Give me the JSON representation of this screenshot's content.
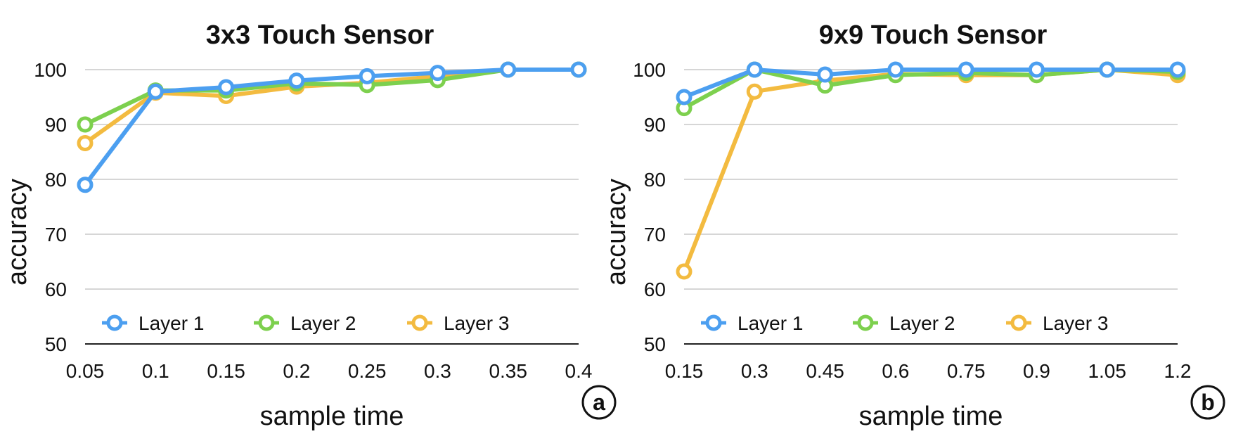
{
  "chart_data": [
    {
      "type": "line",
      "title": "3x3 Touch Sensor",
      "xlabel": "sample time",
      "ylabel": "accuracy",
      "x": [
        "0.05",
        "0.1",
        "0.15",
        "0.2",
        "0.25",
        "0.3",
        "0.35",
        "0.4"
      ],
      "ylim": [
        50,
        100
      ],
      "yticks": [
        "50",
        "60",
        "70",
        "80",
        "90",
        "100"
      ],
      "grid": true,
      "legend_position": "bottom-left",
      "panel_label": "a",
      "series": [
        {
          "name": "Layer 1",
          "color": "#4c9ff0",
          "values": [
            79,
            96,
            96.8,
            98,
            98.8,
            99.4,
            100,
            100
          ]
        },
        {
          "name": "Layer 2",
          "color": "#7dd04e",
          "values": [
            90,
            96.2,
            96.2,
            97.5,
            97.2,
            98.1,
            100,
            100
          ]
        },
        {
          "name": "Layer 3",
          "color": "#f3bb40",
          "values": [
            86.6,
            95.8,
            95.2,
            96.9,
            97.6,
            98.8,
            100,
            100
          ]
        }
      ]
    },
    {
      "type": "line",
      "title": "9x9 Touch Sensor",
      "xlabel": "sample time",
      "ylabel": "accuracy",
      "x": [
        "0.15",
        "0.3",
        "0.45",
        "0.6",
        "0.75",
        "0.9",
        "1.05",
        "1.2"
      ],
      "ylim": [
        50,
        100
      ],
      "yticks": [
        "50",
        "60",
        "70",
        "80",
        "90",
        "100"
      ],
      "grid": true,
      "legend_position": "bottom-left",
      "panel_label": "b",
      "series": [
        {
          "name": "Layer 1",
          "color": "#4c9ff0",
          "values": [
            95,
            100,
            99.1,
            100,
            100,
            100,
            100,
            100
          ]
        },
        {
          "name": "Layer 2",
          "color": "#7dd04e",
          "values": [
            93,
            100,
            97.1,
            99,
            99.4,
            99,
            100,
            99.6
          ]
        },
        {
          "name": "Layer 3",
          "color": "#f3bb40",
          "values": [
            63.2,
            96,
            98,
            99.2,
            99,
            99,
            100,
            99
          ]
        }
      ]
    }
  ]
}
